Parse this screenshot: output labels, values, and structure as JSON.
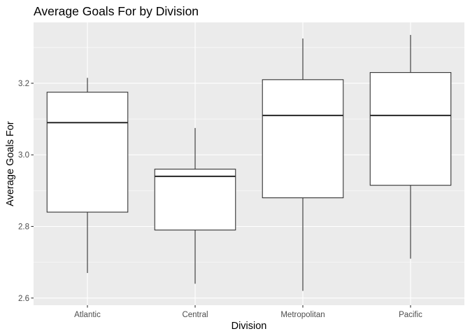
{
  "chart_data": {
    "type": "boxplot",
    "title": "Average Goals For by Division",
    "xlabel": "Division",
    "ylabel": "Average Goals For",
    "categories": [
      "Atlantic",
      "Central",
      "Metropolitan",
      "Pacific"
    ],
    "ylim": [
      2.58,
      3.37
    ],
    "yticks": [
      2.6,
      2.8,
      3.0,
      3.2
    ],
    "ytick_labels": [
      "2.6",
      "2.8",
      "3.0",
      "3.2"
    ],
    "boxes": [
      {
        "category": "Atlantic",
        "min": 2.67,
        "q1": 2.84,
        "median": 3.09,
        "q3": 3.175,
        "max": 3.215
      },
      {
        "category": "Central",
        "min": 2.64,
        "q1": 2.79,
        "median": 2.94,
        "q3": 2.96,
        "max": 3.075
      },
      {
        "category": "Metropolitan",
        "min": 2.62,
        "q1": 2.88,
        "median": 3.11,
        "q3": 3.21,
        "max": 3.325
      },
      {
        "category": "Pacific",
        "min": 2.71,
        "q1": 2.915,
        "median": 3.11,
        "q3": 3.23,
        "max": 3.335
      }
    ],
    "grid": true,
    "colors": {
      "panel": "#ebebeb",
      "grid": "#ffffff",
      "box_fill": "#ffffff",
      "box_line": "#333333"
    }
  }
}
